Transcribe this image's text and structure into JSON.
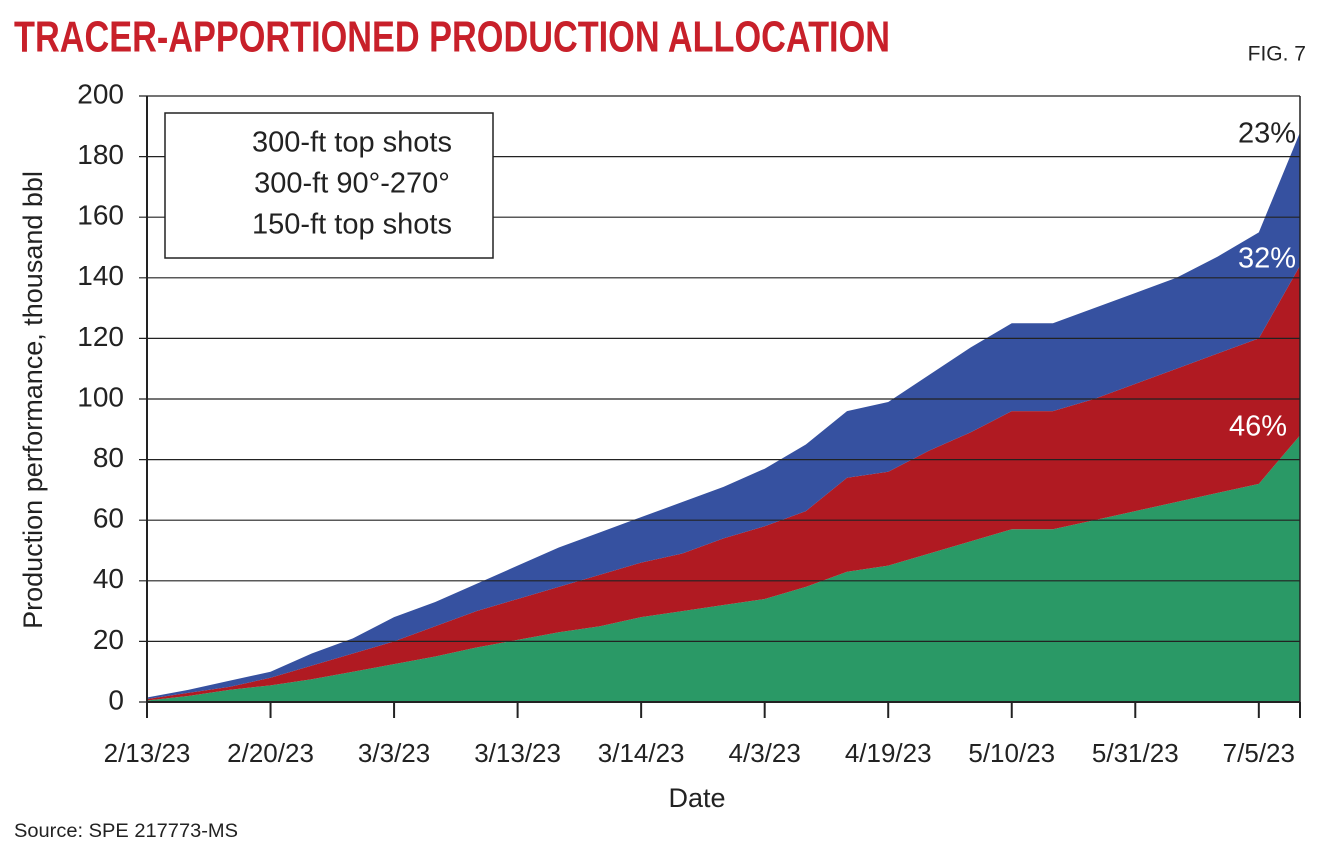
{
  "chart_data": {
    "type": "stacked_area",
    "title": "TRACER-APPORTIONED PRODUCTION ALLOCATION",
    "figure_label": "FIG. 7",
    "source": "Source: SPE 217773-MS",
    "x_label": "Date",
    "y_label": "Production performance, thousand bbl",
    "categories": [
      "2/13/23",
      null,
      null,
      "2/20/23",
      null,
      null,
      "3/3/23",
      null,
      null,
      "3/13/23",
      null,
      null,
      "3/14/23",
      null,
      null,
      "4/3/23",
      null,
      null,
      "4/19/23",
      null,
      null,
      "5/10/23",
      null,
      null,
      "5/31/23",
      null,
      null,
      "7/5/23",
      null
    ],
    "series": [
      {
        "name": "150-ft top shots",
        "color": "#2a9966",
        "values": [
          0.5,
          2,
          4,
          5.5,
          7.5,
          10,
          12.5,
          15,
          18,
          20.5,
          23,
          25,
          28,
          30,
          32,
          34,
          38,
          43,
          45,
          49,
          53,
          57,
          57,
          60,
          63,
          66,
          69,
          72,
          88
        ]
      },
      {
        "name": "300-ft 90°-270°",
        "color": "#b01a22",
        "values": [
          0.5,
          1,
          1,
          2.5,
          4.5,
          6,
          7.5,
          10,
          12,
          13.5,
          15,
          17,
          18,
          19,
          22,
          24,
          25,
          31,
          31,
          34,
          36,
          39,
          39,
          40,
          42,
          44,
          46,
          48,
          56
        ]
      },
      {
        "name": "300-ft top shots",
        "color": "#3651a0",
        "values": [
          0.5,
          1,
          2,
          2,
          4,
          5,
          8,
          8,
          9,
          11,
          13,
          14,
          15,
          17,
          17,
          19,
          22,
          22,
          23,
          25,
          28,
          29,
          29,
          30,
          30,
          30,
          32,
          35,
          44
        ]
      }
    ],
    "annotations": [
      "23%",
      "32%",
      "46%"
    ],
    "ylim": [
      0,
      200
    ],
    "yticks": [
      0,
      20,
      40,
      60,
      80,
      100,
      120,
      140,
      160,
      180,
      200
    ],
    "grid": true
  }
}
